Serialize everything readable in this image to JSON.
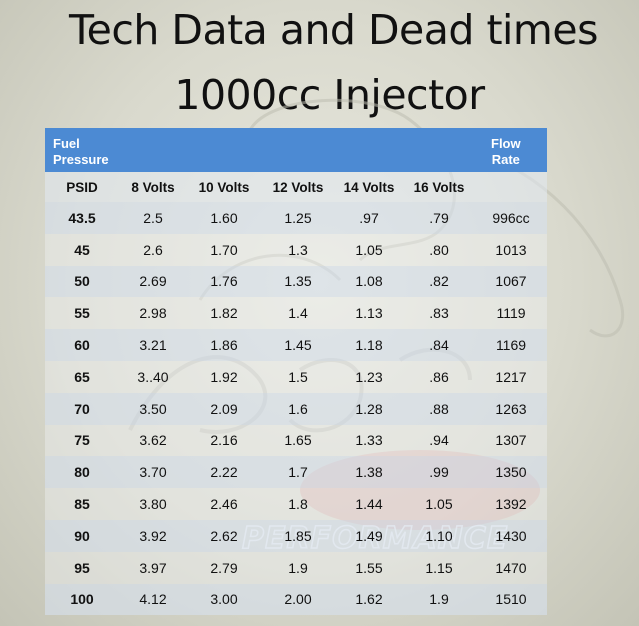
{
  "title_line1": "Tech Data and Dead times",
  "title_line2": "1000cc Injector",
  "header": {
    "fuel_pressure_line1": "Fuel",
    "fuel_pressure_line2": "Pressure",
    "flow_rate_line1": "Flow",
    "flow_rate_line2": "Rate"
  },
  "columns": [
    "PSID",
    "8 Volts",
    "10 Volts",
    "12 Volts",
    "14 Volts",
    "16 Volts",
    ""
  ],
  "rows": [
    [
      "43.5",
      "2.5",
      "1.60",
      "1.25",
      ".97",
      ".79",
      "996cc"
    ],
    [
      "45",
      "2.6",
      "1.70",
      "1.3",
      "1.05",
      ".80",
      "1013"
    ],
    [
      "50",
      "2.69",
      "1.76",
      "1.35",
      "1.08",
      ".82",
      "1067"
    ],
    [
      "55",
      "2.98",
      "1.82",
      "1.4",
      "1.13",
      ".83",
      "1119"
    ],
    [
      "60",
      "3.21",
      "1.86",
      "1.45",
      "1.18",
      ".84",
      "1169"
    ],
    [
      "65",
      "3..40",
      "1.92",
      "1.5",
      "1.23",
      ".86",
      "1217"
    ],
    [
      "70",
      "3.50",
      "2.09",
      "1.6",
      "1.28",
      ".88",
      "1263"
    ],
    [
      "75",
      "3.62",
      "2.16",
      "1.65",
      "1.33",
      ".94",
      "1307"
    ],
    [
      "80",
      "3.70",
      "2.22",
      "1.7",
      "1.38",
      ".99",
      "1350"
    ],
    [
      "85",
      "3.80",
      "2.46",
      "1.8",
      "1.44",
      "1.05",
      "1392"
    ],
    [
      "90",
      "3.92",
      "2.62",
      "1.85",
      "1.49",
      "1.10",
      "1430"
    ],
    [
      "95",
      "3.97",
      "2.79",
      "1.9",
      "1.55",
      "1.15",
      "1470"
    ],
    [
      "100",
      "4.12",
      "3.00",
      "2.00",
      "1.62",
      "1.9",
      "1510"
    ]
  ],
  "watermark_text": "PERFORMANCE",
  "colors": {
    "header_blue": "#4c8ad3",
    "alt_row": "#d6e0ee",
    "watermark_red": "#d9434a"
  }
}
